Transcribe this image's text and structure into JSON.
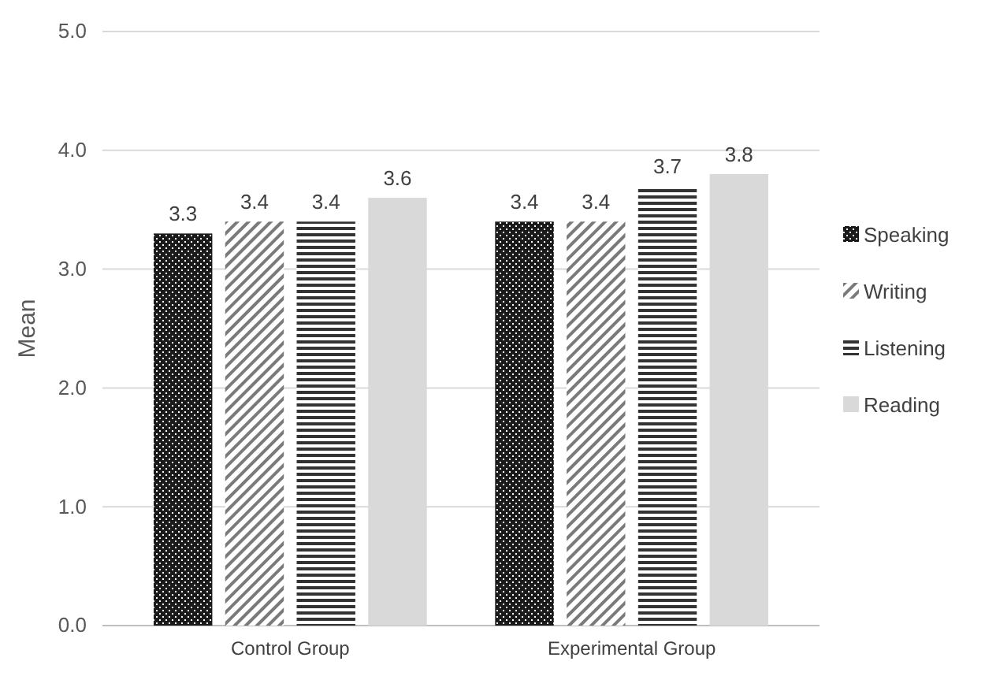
{
  "chart_data": {
    "type": "bar",
    "ylabel": "Mean",
    "categories": [
      "Control Group",
      "Experimental Group"
    ],
    "series": [
      {
        "name": "Speaking",
        "color": "#1a1a1a",
        "values": [
          3.3,
          3.4
        ]
      },
      {
        "name": "Writing",
        "color": "#7a7a7a",
        "values": [
          3.4,
          3.4
        ]
      },
      {
        "name": "Listening",
        "color": "#333333",
        "values": [
          3.4,
          3.7
        ]
      },
      {
        "name": "Reading",
        "color": "#d9d9d9",
        "values": [
          3.6,
          3.8
        ]
      }
    ],
    "ylim": [
      0,
      5
    ],
    "yticks": [
      {
        "value": 0,
        "label": "0.0"
      },
      {
        "value": 1,
        "label": "1.0"
      },
      {
        "value": 2,
        "label": "2.0"
      },
      {
        "value": 3,
        "label": "3.0"
      },
      {
        "value": 4,
        "label": "4.0"
      },
      {
        "value": 5,
        "label": "5.0"
      }
    ],
    "grid": "y",
    "legend": "right",
    "data_labels": true
  }
}
